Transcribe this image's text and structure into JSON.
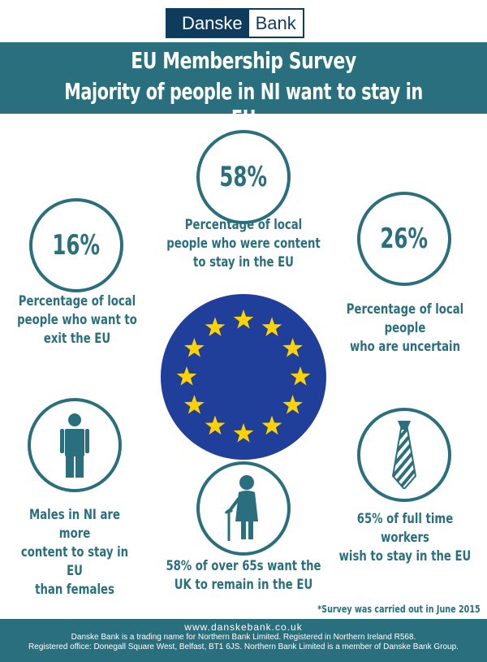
{
  "logo": {
    "part1": "Danske",
    "part2": "Bank"
  },
  "header": {
    "title": "EU Membership Survey",
    "subtitle": "Majority of people in NI want to stay in EU"
  },
  "stats": {
    "content": {
      "value": "58%",
      "caption_lines": [
        "Percentage of local",
        "people who were content",
        "to stay in the EU"
      ]
    },
    "exit": {
      "value": "16%",
      "caption_lines": [
        "Percentage of local",
        "people who want to",
        "exit the EU"
      ]
    },
    "uncertain": {
      "value": "26%",
      "caption_lines": [
        "Percentage of local people",
        "who are uncertain"
      ]
    }
  },
  "facts": {
    "males": {
      "icon": "male-person-icon",
      "lines": [
        "Males in NI are more",
        "content to stay in EU",
        "than females"
      ]
    },
    "over65": {
      "icon": "elderly-woman-icon",
      "lines": [
        "58% of over 65s want the",
        "UK to remain in the EU"
      ]
    },
    "workers": {
      "icon": "necktie-icon",
      "lines": [
        "65% of full time workers",
        "wish to stay in the EU"
      ]
    }
  },
  "flag": {
    "icon": "eu-flag-icon",
    "stars": 12,
    "background": "#1f3f9a",
    "star_color": "#ffd200"
  },
  "note": "*Survey was carried out in June 2015",
  "footer": {
    "url": "www.danskebank.co.uk",
    "line1": "Danske Bank is a trading name for Northern Bank Limited. Registered in Northern Ireland R568.",
    "line2": "Registered office: Donegall Square West, Belfast, BT1 6JS.  Northern Bank Limited is a member of Danske Bank Group."
  },
  "colors": {
    "accent": "#2a6f7d",
    "logo_navy": "#0f3b5c"
  }
}
